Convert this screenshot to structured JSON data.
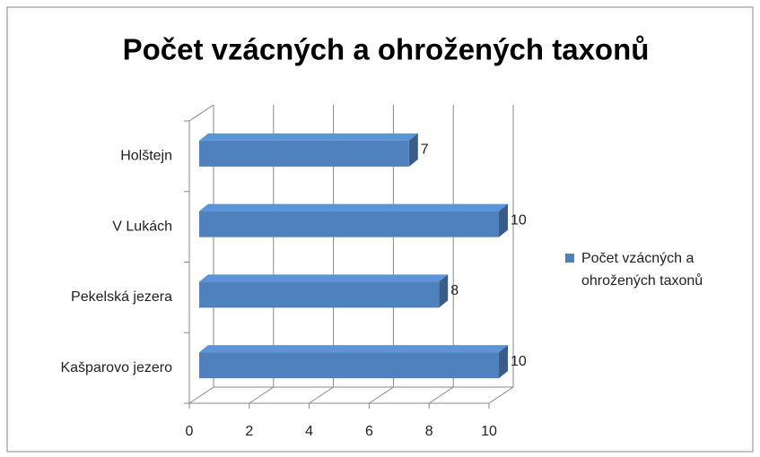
{
  "chart_data": {
    "type": "bar3d_horizontal",
    "title": "Počet vzácných a ohrožených taxonů",
    "categories": [
      "Kašparovo jezero",
      "Pekelská jezera",
      "V Lukách",
      "Holštejn"
    ],
    "series": [
      {
        "name": "Počet vzácných a ohrožených taxonů",
        "color": "#4f81bd",
        "values": [
          10,
          8,
          10,
          7
        ]
      }
    ],
    "xlim": [
      0,
      10
    ],
    "xticks": [
      0,
      2,
      4,
      6,
      8,
      10
    ],
    "grid": true,
    "legend": "right"
  }
}
